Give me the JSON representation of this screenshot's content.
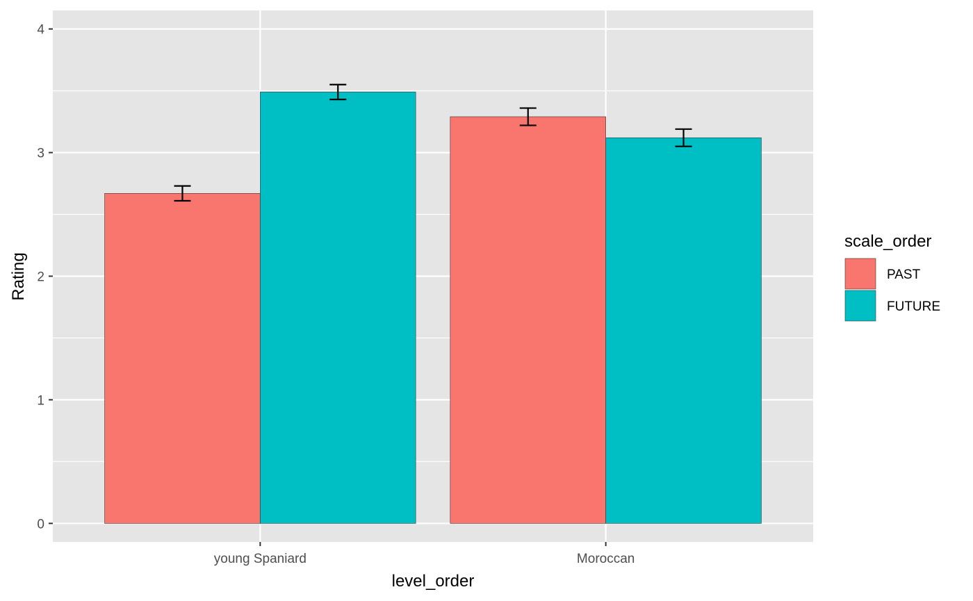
{
  "chart_data": {
    "type": "bar",
    "categories": [
      "young Spaniard",
      "Moroccan"
    ],
    "series": [
      {
        "name": "PAST",
        "color": "#F8766D",
        "values": [
          2.67,
          3.29
        ],
        "error_low": [
          2.61,
          3.22
        ],
        "error_high": [
          2.73,
          3.36
        ]
      },
      {
        "name": "FUTURE",
        "color": "#00BFC4",
        "values": [
          3.49,
          3.12
        ],
        "error_low": [
          3.43,
          3.05
        ],
        "error_high": [
          3.55,
          3.19
        ]
      }
    ],
    "xlabel": "level_order",
    "ylabel": "Rating",
    "ylim": [
      -0.15,
      4.15
    ],
    "yticks": [
      0,
      1,
      2,
      3,
      4
    ],
    "ytick_labels": [
      "0",
      "1",
      "2",
      "3",
      "4"
    ],
    "grid": true,
    "legend": {
      "title": "scale_order",
      "position": "right"
    },
    "colors": {
      "panel_background": "#E5E5E5",
      "gridline": "#FFFFFF"
    }
  }
}
